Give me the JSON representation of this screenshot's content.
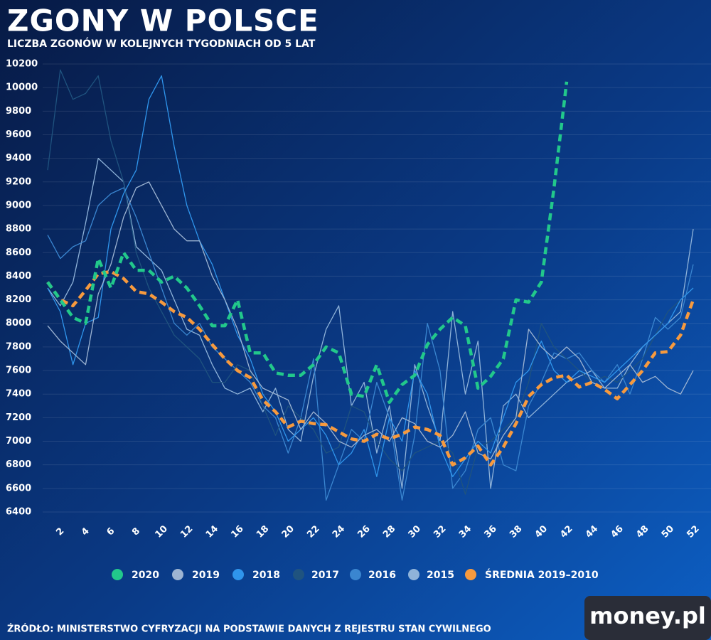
{
  "chart_data": {
    "type": "line",
    "title": "ZGONY W POLSCE",
    "subtitle": "LICZBA ZGONÓW W KOLEJNYCH TYGODNIACH OD 5 LAT",
    "source": "ŹRÓDŁO: MINISTERSTWO CYFRYZACJI NA PODSTAWIE DANYCH Z REJESTRU STAN CYWILNEGO",
    "brand": "money.pl",
    "x": [
      1,
      2,
      3,
      4,
      5,
      6,
      7,
      8,
      9,
      10,
      11,
      12,
      13,
      14,
      15,
      16,
      17,
      18,
      19,
      20,
      21,
      22,
      23,
      24,
      25,
      26,
      27,
      28,
      29,
      30,
      31,
      32,
      33,
      34,
      35,
      36,
      37,
      38,
      39,
      40,
      41,
      42,
      43,
      44,
      45,
      46,
      47,
      48,
      49,
      50,
      51,
      52
    ],
    "xlim": [
      1,
      52
    ],
    "xticks": [
      2,
      4,
      6,
      8,
      10,
      12,
      14,
      16,
      18,
      20,
      22,
      24,
      26,
      28,
      30,
      32,
      34,
      36,
      38,
      40,
      42,
      44,
      46,
      48,
      50,
      52
    ],
    "ylim": [
      6400,
      10200
    ],
    "yticks": [
      6400,
      6600,
      6800,
      7000,
      7200,
      7400,
      7600,
      7800,
      8000,
      8200,
      8400,
      8600,
      8800,
      9000,
      9200,
      9400,
      9600,
      9800,
      10000,
      10200
    ],
    "grid": true,
    "legend": "bottom",
    "series": [
      {
        "name": "2015",
        "color": "#8fb3d9",
        "dash": false,
        "values": [
          8300,
          8150,
          8350,
          8850,
          9400,
          9300,
          9200,
          8650,
          8550,
          8450,
          8200,
          7950,
          7900,
          7650,
          7450,
          7400,
          7450,
          7250,
          7450,
          7100,
          7000,
          7550,
          7950,
          8150,
          7300,
          7500,
          6900,
          7300,
          6600,
          7650,
          7300,
          7000,
          8100,
          7400,
          7850,
          6600,
          7300,
          7400,
          7200,
          7300,
          7400,
          7500,
          7550,
          7600,
          7450,
          7450,
          7650,
          7800,
          7900,
          8000,
          8100,
          8800
        ]
      },
      {
        "name": "2016",
        "color": "#3a86d0",
        "dash": false,
        "values": [
          8750,
          8550,
          8650,
          8700,
          9000,
          9100,
          9150,
          8900,
          8600,
          8300,
          8000,
          7900,
          8000,
          7800,
          7700,
          7600,
          7500,
          7300,
          7200,
          6900,
          7200,
          7700,
          6500,
          6800,
          7100,
          7000,
          7500,
          7200,
          6500,
          7050,
          8000,
          7600,
          6600,
          6750,
          7100,
          7200,
          6800,
          6750,
          7300,
          7500,
          7750,
          7700,
          7750,
          7600,
          7500,
          7650,
          7400,
          7700,
          8050,
          7950,
          8050,
          8500
        ]
      },
      {
        "name": "2017",
        "color": "#1f537f",
        "dash": false,
        "values": [
          9300,
          10150,
          9900,
          9950,
          10100,
          9550,
          9200,
          8600,
          8300,
          8100,
          7900,
          7800,
          7700,
          7500,
          7500,
          7650,
          7600,
          7300,
          7050,
          7300,
          7200,
          7100,
          6900,
          6950,
          7300,
          7250,
          7000,
          6850,
          6750,
          6900,
          6950,
          7000,
          6900,
          6550,
          6950,
          7000,
          7100,
          7200,
          7500,
          8000,
          7800,
          7700,
          7600,
          7500,
          7550,
          7500,
          7600,
          7700,
          7900,
          8100,
          8200,
          8300
        ]
      },
      {
        "name": "2018",
        "color": "#2f95ec",
        "dash": false,
        "values": [
          8300,
          8100,
          7650,
          8000,
          8050,
          8800,
          9100,
          9300,
          9900,
          10100,
          9500,
          9000,
          8700,
          8500,
          8200,
          7900,
          7700,
          7400,
          7250,
          7000,
          7100,
          7200,
          7050,
          6800,
          6900,
          7100,
          6700,
          7200,
          7000,
          7600,
          7400,
          6950,
          6700,
          6850,
          7000,
          6900,
          7200,
          7500,
          7600,
          7850,
          7600,
          7500,
          7600,
          7550,
          7500,
          7600,
          7700,
          7800,
          7900,
          8000,
          8200,
          8300
        ]
      },
      {
        "name": "2019",
        "color": "#9db4d2",
        "dash": false,
        "values": [
          7980,
          7850,
          7750,
          7650,
          8250,
          8500,
          8900,
          9150,
          9200,
          9000,
          8800,
          8700,
          8700,
          8400,
          8200,
          7950,
          7600,
          7450,
          7400,
          7350,
          7100,
          7250,
          7150,
          7000,
          6950,
          7050,
          7100,
          7000,
          7200,
          7150,
          7000,
          6950,
          7050,
          7250,
          6900,
          6850,
          7050,
          7200,
          7950,
          7800,
          7700,
          7800,
          7700,
          7500,
          7450,
          7550,
          7650,
          7500,
          7550,
          7450,
          7400,
          7600
        ]
      },
      {
        "name": "ŚREDNIA 2019–2010",
        "color": "#f79a3e",
        "dash": true,
        "values": [
          8350,
          8200,
          8150,
          8280,
          8420,
          8440,
          8380,
          8270,
          8250,
          8180,
          8100,
          8050,
          7950,
          7820,
          7700,
          7600,
          7540,
          7350,
          7250,
          7120,
          7170,
          7150,
          7140,
          7080,
          7020,
          7000,
          7060,
          7020,
          7060,
          7120,
          7100,
          7050,
          6800,
          6860,
          6960,
          6800,
          6950,
          7150,
          7380,
          7480,
          7540,
          7560,
          7460,
          7500,
          7440,
          7360,
          7480,
          7600,
          7750,
          7760,
          7900,
          8200
        ]
      },
      {
        "name": "2020",
        "color": "#22c88b",
        "dash": true,
        "values": [
          8350,
          8200,
          8050,
          8000,
          8550,
          8300,
          8600,
          8450,
          8450,
          8350,
          8400,
          8300,
          8150,
          7980,
          7980,
          8200,
          7750,
          7750,
          7580,
          7560,
          7560,
          7650,
          7800,
          7750,
          7400,
          7380,
          7650,
          7330,
          7480,
          7560,
          7820,
          7950,
          8050,
          7980,
          7450,
          7550,
          7700,
          8200,
          8180,
          8350,
          9150,
          10050,
          null,
          null,
          null,
          null,
          null,
          null,
          null,
          null,
          null,
          null
        ]
      }
    ],
    "legend_order": [
      6,
      4,
      3,
      2,
      1,
      0,
      5
    ]
  }
}
